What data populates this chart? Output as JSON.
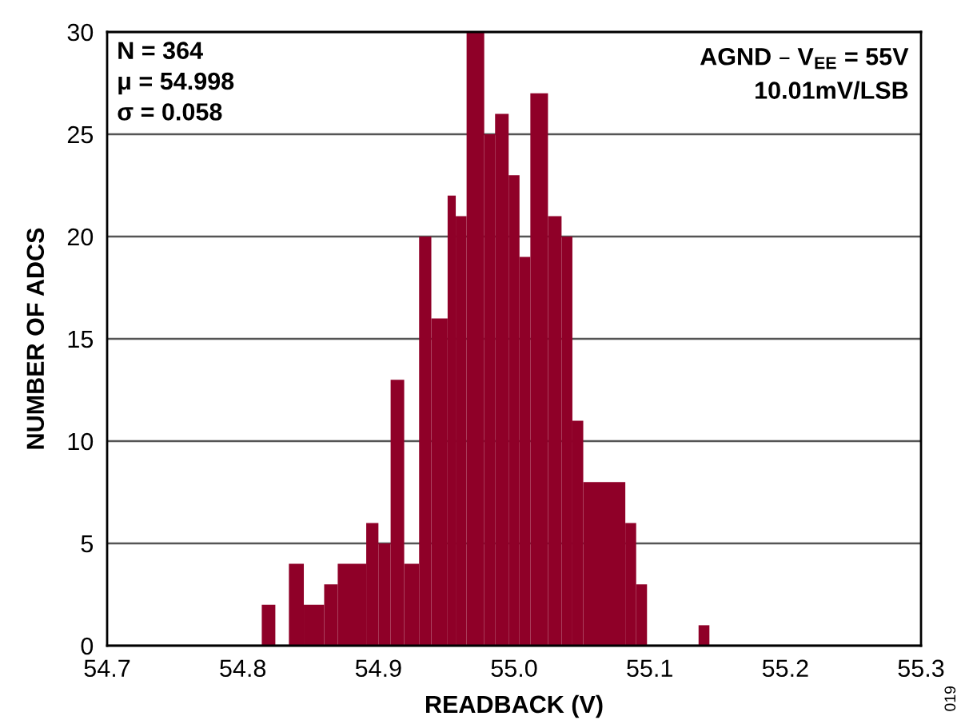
{
  "chart_data": {
    "type": "histogram",
    "xlabel": "READBACK (V)",
    "ylabel": "NUMBER OF ADCS",
    "bins": [
      54.814,
      54.824,
      54.834,
      54.845,
      54.86,
      54.87,
      54.891,
      54.9,
      54.909,
      54.919,
      54.93,
      54.939,
      54.951,
      54.957,
      54.965,
      54.978,
      54.986,
      54.996,
      55.004,
      55.012,
      55.025,
      55.035,
      55.043,
      55.051,
      55.082,
      55.09,
      55.098,
      55.136,
      55.144
    ],
    "values": [
      2,
      0,
      4,
      2,
      3,
      4,
      6,
      5,
      13,
      4,
      20,
      16,
      22,
      21,
      30,
      25,
      26,
      23,
      19,
      27,
      21,
      20,
      11,
      8,
      6,
      3,
      0,
      1
    ],
    "color": "#8f0028",
    "xlim": [
      54.7,
      55.3
    ],
    "xticks": [
      54.7,
      54.8,
      54.9,
      {
        "value": 55.0,
        "label": "55.0"
      },
      55.1,
      55.2,
      55.3
    ],
    "ylim": [
      0,
      30
    ],
    "yticks": [
      0,
      5,
      10,
      15,
      20,
      25,
      30
    ],
    "grid": "y",
    "annotations": [
      "N = 364",
      "μ = 54.998",
      "σ = 0.058",
      "AGND – V$_{EE}$ = 55V",
      "10.01mV/LSB",
      "019"
    ]
  }
}
